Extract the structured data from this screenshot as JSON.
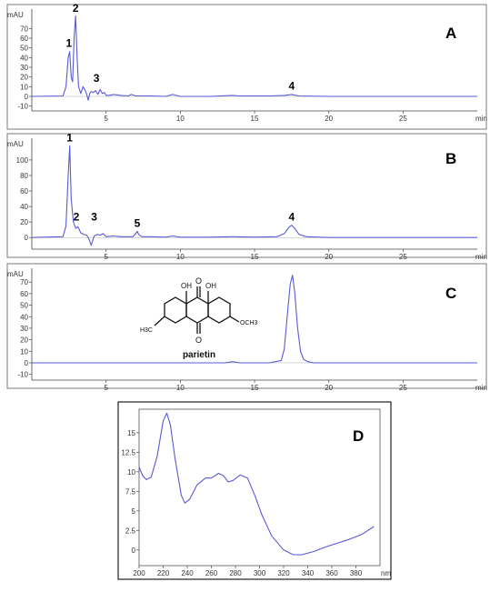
{
  "chart_data": [
    {
      "type": "line",
      "panel_label": "A",
      "ylabel": "mAU",
      "xlabel": "min",
      "xlim": [
        0,
        30
      ],
      "ylim": [
        -15,
        90
      ],
      "x_ticks": [
        5,
        10,
        15,
        20,
        25
      ],
      "y_ticks": [
        -10,
        0,
        10,
        20,
        30,
        40,
        50,
        60,
        70
      ],
      "series": [
        {
          "color": "#5a5ad6",
          "x": [
            0,
            2.1,
            2.3,
            2.45,
            2.55,
            2.65,
            2.75,
            2.85,
            2.95,
            3.05,
            3.15,
            3.3,
            3.45,
            3.6,
            3.7,
            3.8,
            3.9,
            4.0,
            4.15,
            4.3,
            4.45,
            4.6,
            4.75,
            4.9,
            5.0,
            5.2,
            5.5,
            6,
            6.5,
            6.7,
            7,
            8,
            9,
            9.5,
            10,
            12,
            13.5,
            14,
            16,
            17,
            17.5,
            18,
            20,
            25,
            30
          ],
          "y": [
            0,
            0.5,
            10,
            40,
            46,
            20,
            15,
            60,
            83,
            40,
            10,
            3,
            10,
            6,
            2,
            -4,
            3,
            5,
            4,
            6,
            2,
            7,
            3,
            4,
            1,
            1,
            2,
            1,
            0.5,
            2,
            0.5,
            0.5,
            0,
            2,
            0,
            0,
            1,
            0.5,
            0.5,
            1,
            2,
            0.5,
            0,
            0,
            0
          ]
        }
      ],
      "peak_labels": [
        {
          "label": "1",
          "x": 2.5,
          "y": 51
        },
        {
          "label": "2",
          "x": 2.95,
          "y": 87
        },
        {
          "label": "3",
          "x": 4.35,
          "y": 15
        },
        {
          "label": "4",
          "x": 17.5,
          "y": 7
        }
      ]
    },
    {
      "type": "line",
      "panel_label": "B",
      "ylabel": "mAU",
      "xlabel": "min",
      "xlim": [
        0,
        30
      ],
      "ylim": [
        -15,
        128
      ],
      "x_ticks": [
        5,
        10,
        15,
        20,
        25
      ],
      "y_ticks": [
        0,
        20,
        40,
        60,
        80,
        100
      ],
      "series": [
        {
          "color": "#5a5ad6",
          "x": [
            0,
            2.1,
            2.3,
            2.45,
            2.55,
            2.65,
            2.8,
            2.95,
            3.1,
            3.3,
            3.5,
            3.7,
            3.85,
            4.0,
            4.2,
            4.4,
            4.6,
            4.8,
            5.0,
            5.5,
            6,
            6.8,
            7.0,
            7.1,
            7.2,
            7.4,
            8,
            9,
            9.5,
            10,
            12,
            13.5,
            15,
            16.5,
            17,
            17.3,
            17.5,
            17.7,
            18,
            18.5,
            20,
            25,
            30
          ],
          "y": [
            0,
            1,
            15,
            80,
            118,
            50,
            20,
            12,
            14,
            6,
            4,
            3,
            -2,
            -10,
            2,
            4,
            3,
            5,
            1,
            2,
            1,
            1,
            5,
            8,
            4,
            1,
            1,
            0.5,
            2,
            0.5,
            0.5,
            1,
            0.5,
            1,
            5,
            13,
            16,
            12,
            4,
            1,
            0,
            0,
            0
          ]
        }
      ],
      "peak_labels": [
        {
          "label": "1",
          "x": 2.55,
          "y": 124
        },
        {
          "label": "2",
          "x": 3.0,
          "y": 22
        },
        {
          "label": "3",
          "x": 4.2,
          "y": 22
        },
        {
          "label": "5",
          "x": 7.1,
          "y": 14
        },
        {
          "label": "4",
          "x": 17.5,
          "y": 22
        }
      ]
    },
    {
      "type": "line",
      "panel_label": "C",
      "ylabel": "mAU",
      "xlabel": "min",
      "xlim": [
        0,
        30
      ],
      "ylim": [
        -15,
        82
      ],
      "x_ticks": [
        5,
        10,
        15,
        20,
        25
      ],
      "y_ticks": [
        -10,
        0,
        10,
        20,
        30,
        40,
        50,
        60,
        70
      ],
      "series": [
        {
          "color": "#5a5ad6",
          "x": [
            0,
            3,
            5,
            10,
            13,
            13.5,
            14,
            16,
            16.8,
            17.0,
            17.2,
            17.4,
            17.55,
            17.7,
            17.9,
            18.1,
            18.3,
            18.6,
            19,
            20,
            25,
            30
          ],
          "y": [
            0,
            0,
            0,
            0,
            0,
            1,
            0,
            0,
            2,
            12,
            40,
            68,
            76,
            62,
            30,
            10,
            3,
            1,
            0,
            0,
            0,
            0
          ]
        }
      ],
      "peak_labels": [],
      "structure_label": "parietin",
      "structure_groups": {
        "oh": "OH",
        "och3": "OCH3",
        "h3c": "H3C",
        "oxygen": "O"
      }
    },
    {
      "type": "line",
      "panel_label": "D",
      "xlabel": "nm",
      "xlim": [
        200,
        400
      ],
      "ylim": [
        -2,
        18
      ],
      "x_ticks": [
        200,
        220,
        240,
        260,
        280,
        300,
        320,
        340,
        360,
        380
      ],
      "y_ticks": [
        0,
        2.5,
        5,
        7.5,
        10,
        12.5,
        15
      ],
      "y_tick_labels": [
        "0",
        "2.5",
        "5",
        "7.5",
        "10",
        "12.5",
        "15"
      ],
      "series": [
        {
          "color": "#5a5ad6",
          "x": [
            200,
            203,
            206,
            210,
            215,
            220,
            223,
            226,
            230,
            235,
            238,
            242,
            248,
            255,
            260,
            266,
            270,
            274,
            278,
            284,
            290,
            296,
            302,
            310,
            320,
            328,
            335,
            345,
            355,
            365,
            375,
            385,
            395
          ],
          "y": [
            10.6,
            9.5,
            9,
            9.3,
            12,
            16.5,
            17.5,
            16,
            11.5,
            7,
            6,
            6.5,
            8.3,
            9.2,
            9.2,
            9.8,
            9.5,
            8.7,
            8.9,
            9.6,
            9.2,
            7,
            4.5,
            1.8,
            0,
            -0.6,
            -0.6,
            -0.2,
            0.4,
            0.9,
            1.4,
            2,
            3
          ]
        }
      ]
    }
  ]
}
